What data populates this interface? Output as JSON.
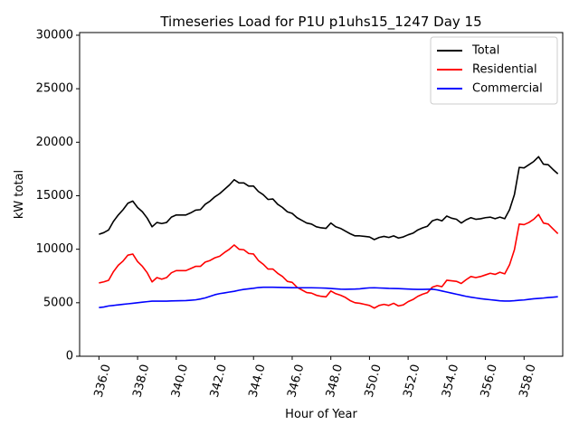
{
  "chart_data": {
    "type": "line",
    "title": "Timeseries Load for P1U p1uhs15_1247  Day 15",
    "xlabel": "Hour of Year",
    "ylabel": "kW total",
    "xlim": [
      335.0,
      360.0
    ],
    "ylim": [
      0,
      30250
    ],
    "x_ticks": [
      336,
      338,
      340,
      342,
      344,
      346,
      348,
      350,
      352,
      354,
      356,
      358
    ],
    "x_tick_labels": [
      "336.0",
      "338.0",
      "340.0",
      "342.0",
      "344.0",
      "346.0",
      "348.0",
      "350.0",
      "352.0",
      "354.0",
      "356.0",
      "358.0"
    ],
    "y_ticks": [
      0,
      5000,
      10000,
      15000,
      20000,
      25000,
      30000
    ],
    "y_tick_labels": [
      "0",
      "5000",
      "10000",
      "15000",
      "20000",
      "25000",
      "30000"
    ],
    "legend_position": "top-right",
    "series": [
      {
        "name": "Total",
        "color": "#000000",
        "points": [
          [
            336.0,
            11400
          ],
          [
            336.25,
            11550
          ],
          [
            336.5,
            11800
          ],
          [
            336.75,
            12600
          ],
          [
            337.0,
            13200
          ],
          [
            337.25,
            13700
          ],
          [
            337.5,
            14300
          ],
          [
            337.75,
            14500
          ],
          [
            338.0,
            13900
          ],
          [
            338.25,
            13500
          ],
          [
            338.5,
            12900
          ],
          [
            338.75,
            12100
          ],
          [
            339.0,
            12500
          ],
          [
            339.25,
            12400
          ],
          [
            339.5,
            12500
          ],
          [
            339.75,
            13000
          ],
          [
            340.0,
            13200
          ],
          [
            340.25,
            13200
          ],
          [
            340.5,
            13200
          ],
          [
            340.75,
            13400
          ],
          [
            341.0,
            13650
          ],
          [
            341.25,
            13700
          ],
          [
            341.5,
            14200
          ],
          [
            341.75,
            14500
          ],
          [
            342.0,
            14900
          ],
          [
            342.25,
            15200
          ],
          [
            342.5,
            15600
          ],
          [
            342.75,
            16000
          ],
          [
            343.0,
            16500
          ],
          [
            343.25,
            16200
          ],
          [
            343.5,
            16200
          ],
          [
            343.75,
            15900
          ],
          [
            344.0,
            15900
          ],
          [
            344.25,
            15400
          ],
          [
            344.5,
            15100
          ],
          [
            344.75,
            14650
          ],
          [
            345.0,
            14700
          ],
          [
            345.25,
            14200
          ],
          [
            345.5,
            13900
          ],
          [
            345.75,
            13500
          ],
          [
            346.0,
            13350
          ],
          [
            346.25,
            12950
          ],
          [
            346.5,
            12700
          ],
          [
            346.75,
            12450
          ],
          [
            347.0,
            12350
          ],
          [
            347.25,
            12100
          ],
          [
            347.5,
            12000
          ],
          [
            347.75,
            11950
          ],
          [
            348.0,
            12450
          ],
          [
            348.25,
            12100
          ],
          [
            348.5,
            11950
          ],
          [
            348.75,
            11700
          ],
          [
            349.0,
            11450
          ],
          [
            349.25,
            11250
          ],
          [
            349.5,
            11250
          ],
          [
            349.75,
            11200
          ],
          [
            350.0,
            11150
          ],
          [
            350.25,
            10900
          ],
          [
            350.5,
            11100
          ],
          [
            350.75,
            11200
          ],
          [
            351.0,
            11100
          ],
          [
            351.25,
            11250
          ],
          [
            351.5,
            11050
          ],
          [
            351.75,
            11150
          ],
          [
            352.0,
            11350
          ],
          [
            352.25,
            11500
          ],
          [
            352.5,
            11800
          ],
          [
            352.75,
            12000
          ],
          [
            353.0,
            12150
          ],
          [
            353.25,
            12650
          ],
          [
            353.5,
            12800
          ],
          [
            353.75,
            12650
          ],
          [
            354.0,
            13100
          ],
          [
            354.25,
            12900
          ],
          [
            354.5,
            12800
          ],
          [
            354.75,
            12450
          ],
          [
            355.0,
            12750
          ],
          [
            355.25,
            12950
          ],
          [
            355.5,
            12800
          ],
          [
            355.75,
            12850
          ],
          [
            356.0,
            12950
          ],
          [
            356.25,
            13000
          ],
          [
            356.5,
            12850
          ],
          [
            356.75,
            13000
          ],
          [
            357.0,
            12850
          ],
          [
            357.25,
            13700
          ],
          [
            357.5,
            15100
          ],
          [
            357.75,
            17650
          ],
          [
            358.0,
            17600
          ],
          [
            358.25,
            17900
          ],
          [
            358.5,
            18200
          ],
          [
            358.75,
            18650
          ],
          [
            359.0,
            17950
          ],
          [
            359.25,
            17900
          ],
          [
            359.5,
            17450
          ],
          [
            359.75,
            17050
          ]
        ]
      },
      {
        "name": "Residential",
        "color": "#ff0000",
        "points": [
          [
            336.0,
            6850
          ],
          [
            336.25,
            6950
          ],
          [
            336.5,
            7100
          ],
          [
            336.75,
            7900
          ],
          [
            337.0,
            8500
          ],
          [
            337.25,
            8900
          ],
          [
            337.5,
            9450
          ],
          [
            337.75,
            9550
          ],
          [
            338.0,
            8850
          ],
          [
            338.25,
            8400
          ],
          [
            338.5,
            7800
          ],
          [
            338.75,
            6950
          ],
          [
            339.0,
            7350
          ],
          [
            339.25,
            7200
          ],
          [
            339.5,
            7350
          ],
          [
            339.75,
            7800
          ],
          [
            340.0,
            8000
          ],
          [
            340.25,
            8000
          ],
          [
            340.5,
            8000
          ],
          [
            340.75,
            8200
          ],
          [
            341.0,
            8400
          ],
          [
            341.25,
            8400
          ],
          [
            341.5,
            8800
          ],
          [
            341.75,
            8950
          ],
          [
            342.0,
            9200
          ],
          [
            342.25,
            9350
          ],
          [
            342.5,
            9700
          ],
          [
            342.75,
            10000
          ],
          [
            343.0,
            10400
          ],
          [
            343.25,
            10000
          ],
          [
            343.5,
            9950
          ],
          [
            343.75,
            9600
          ],
          [
            344.0,
            9550
          ],
          [
            344.25,
            8950
          ],
          [
            344.5,
            8600
          ],
          [
            344.75,
            8150
          ],
          [
            345.0,
            8150
          ],
          [
            345.25,
            7750
          ],
          [
            345.5,
            7450
          ],
          [
            345.75,
            7000
          ],
          [
            346.0,
            6900
          ],
          [
            346.25,
            6450
          ],
          [
            346.5,
            6200
          ],
          [
            346.75,
            5950
          ],
          [
            347.0,
            5900
          ],
          [
            347.25,
            5700
          ],
          [
            347.5,
            5600
          ],
          [
            347.75,
            5550
          ],
          [
            348.0,
            6100
          ],
          [
            348.25,
            5850
          ],
          [
            348.5,
            5700
          ],
          [
            348.75,
            5500
          ],
          [
            349.0,
            5200
          ],
          [
            349.25,
            5000
          ],
          [
            349.5,
            4950
          ],
          [
            349.75,
            4850
          ],
          [
            350.0,
            4750
          ],
          [
            350.25,
            4500
          ],
          [
            350.5,
            4750
          ],
          [
            350.75,
            4850
          ],
          [
            351.0,
            4750
          ],
          [
            351.25,
            4950
          ],
          [
            351.5,
            4700
          ],
          [
            351.75,
            4800
          ],
          [
            352.0,
            5100
          ],
          [
            352.25,
            5300
          ],
          [
            352.5,
            5600
          ],
          [
            352.75,
            5800
          ],
          [
            353.0,
            5950
          ],
          [
            353.25,
            6450
          ],
          [
            353.5,
            6600
          ],
          [
            353.75,
            6500
          ],
          [
            354.0,
            7100
          ],
          [
            354.25,
            7050
          ],
          [
            354.5,
            7000
          ],
          [
            354.75,
            6800
          ],
          [
            355.0,
            7150
          ],
          [
            355.25,
            7450
          ],
          [
            355.5,
            7350
          ],
          [
            355.75,
            7450
          ],
          [
            356.0,
            7600
          ],
          [
            356.25,
            7750
          ],
          [
            356.5,
            7650
          ],
          [
            356.75,
            7850
          ],
          [
            357.0,
            7700
          ],
          [
            357.25,
            8550
          ],
          [
            357.5,
            9950
          ],
          [
            357.75,
            12350
          ],
          [
            358.0,
            12300
          ],
          [
            358.25,
            12500
          ],
          [
            358.5,
            12800
          ],
          [
            358.75,
            13250
          ],
          [
            359.0,
            12450
          ],
          [
            359.25,
            12350
          ],
          [
            359.5,
            11900
          ],
          [
            359.75,
            11450
          ]
        ]
      },
      {
        "name": "Commercial",
        "color": "#0000ff",
        "points": [
          [
            336.0,
            4550
          ],
          [
            336.25,
            4600
          ],
          [
            336.5,
            4700
          ],
          [
            336.75,
            4750
          ],
          [
            337.0,
            4800
          ],
          [
            337.25,
            4850
          ],
          [
            337.5,
            4900
          ],
          [
            337.75,
            4950
          ],
          [
            338.0,
            5000
          ],
          [
            338.25,
            5050
          ],
          [
            338.5,
            5100
          ],
          [
            338.75,
            5150
          ],
          [
            339.0,
            5150
          ],
          [
            339.25,
            5150
          ],
          [
            339.5,
            5150
          ],
          [
            339.75,
            5170
          ],
          [
            340.0,
            5180
          ],
          [
            340.25,
            5190
          ],
          [
            340.5,
            5200
          ],
          [
            340.75,
            5230
          ],
          [
            341.0,
            5270
          ],
          [
            341.25,
            5350
          ],
          [
            341.5,
            5450
          ],
          [
            341.75,
            5600
          ],
          [
            342.0,
            5750
          ],
          [
            342.25,
            5850
          ],
          [
            342.5,
            5920
          ],
          [
            342.75,
            6000
          ],
          [
            343.0,
            6070
          ],
          [
            343.25,
            6170
          ],
          [
            343.5,
            6250
          ],
          [
            343.75,
            6300
          ],
          [
            344.0,
            6350
          ],
          [
            344.25,
            6420
          ],
          [
            344.5,
            6450
          ],
          [
            344.75,
            6450
          ],
          [
            345.0,
            6450
          ],
          [
            345.25,
            6440
          ],
          [
            345.5,
            6430
          ],
          [
            345.75,
            6420
          ],
          [
            346.0,
            6410
          ],
          [
            346.25,
            6400
          ],
          [
            346.5,
            6400
          ],
          [
            346.75,
            6400
          ],
          [
            347.0,
            6400
          ],
          [
            347.25,
            6390
          ],
          [
            347.5,
            6380
          ],
          [
            347.75,
            6360
          ],
          [
            348.0,
            6330
          ],
          [
            348.25,
            6300
          ],
          [
            348.5,
            6270
          ],
          [
            348.75,
            6260
          ],
          [
            349.0,
            6270
          ],
          [
            349.25,
            6280
          ],
          [
            349.5,
            6300
          ],
          [
            349.75,
            6350
          ],
          [
            350.0,
            6390
          ],
          [
            350.25,
            6400
          ],
          [
            350.5,
            6380
          ],
          [
            350.75,
            6360
          ],
          [
            351.0,
            6340
          ],
          [
            351.25,
            6330
          ],
          [
            351.5,
            6320
          ],
          [
            351.75,
            6300
          ],
          [
            352.0,
            6280
          ],
          [
            352.25,
            6260
          ],
          [
            352.5,
            6250
          ],
          [
            352.75,
            6250
          ],
          [
            353.0,
            6260
          ],
          [
            353.25,
            6270
          ],
          [
            353.5,
            6200
          ],
          [
            353.75,
            6100
          ],
          [
            354.0,
            6000
          ],
          [
            354.25,
            5900
          ],
          [
            354.5,
            5800
          ],
          [
            354.75,
            5700
          ],
          [
            355.0,
            5600
          ],
          [
            355.25,
            5520
          ],
          [
            355.5,
            5450
          ],
          [
            355.75,
            5380
          ],
          [
            356.0,
            5330
          ],
          [
            356.25,
            5280
          ],
          [
            356.5,
            5230
          ],
          [
            356.75,
            5180
          ],
          [
            357.0,
            5160
          ],
          [
            357.25,
            5160
          ],
          [
            357.5,
            5190
          ],
          [
            357.75,
            5230
          ],
          [
            358.0,
            5260
          ],
          [
            358.25,
            5320
          ],
          [
            358.5,
            5370
          ],
          [
            358.75,
            5400
          ],
          [
            359.0,
            5440
          ],
          [
            359.25,
            5490
          ],
          [
            359.5,
            5520
          ],
          [
            359.75,
            5560
          ]
        ]
      }
    ]
  }
}
